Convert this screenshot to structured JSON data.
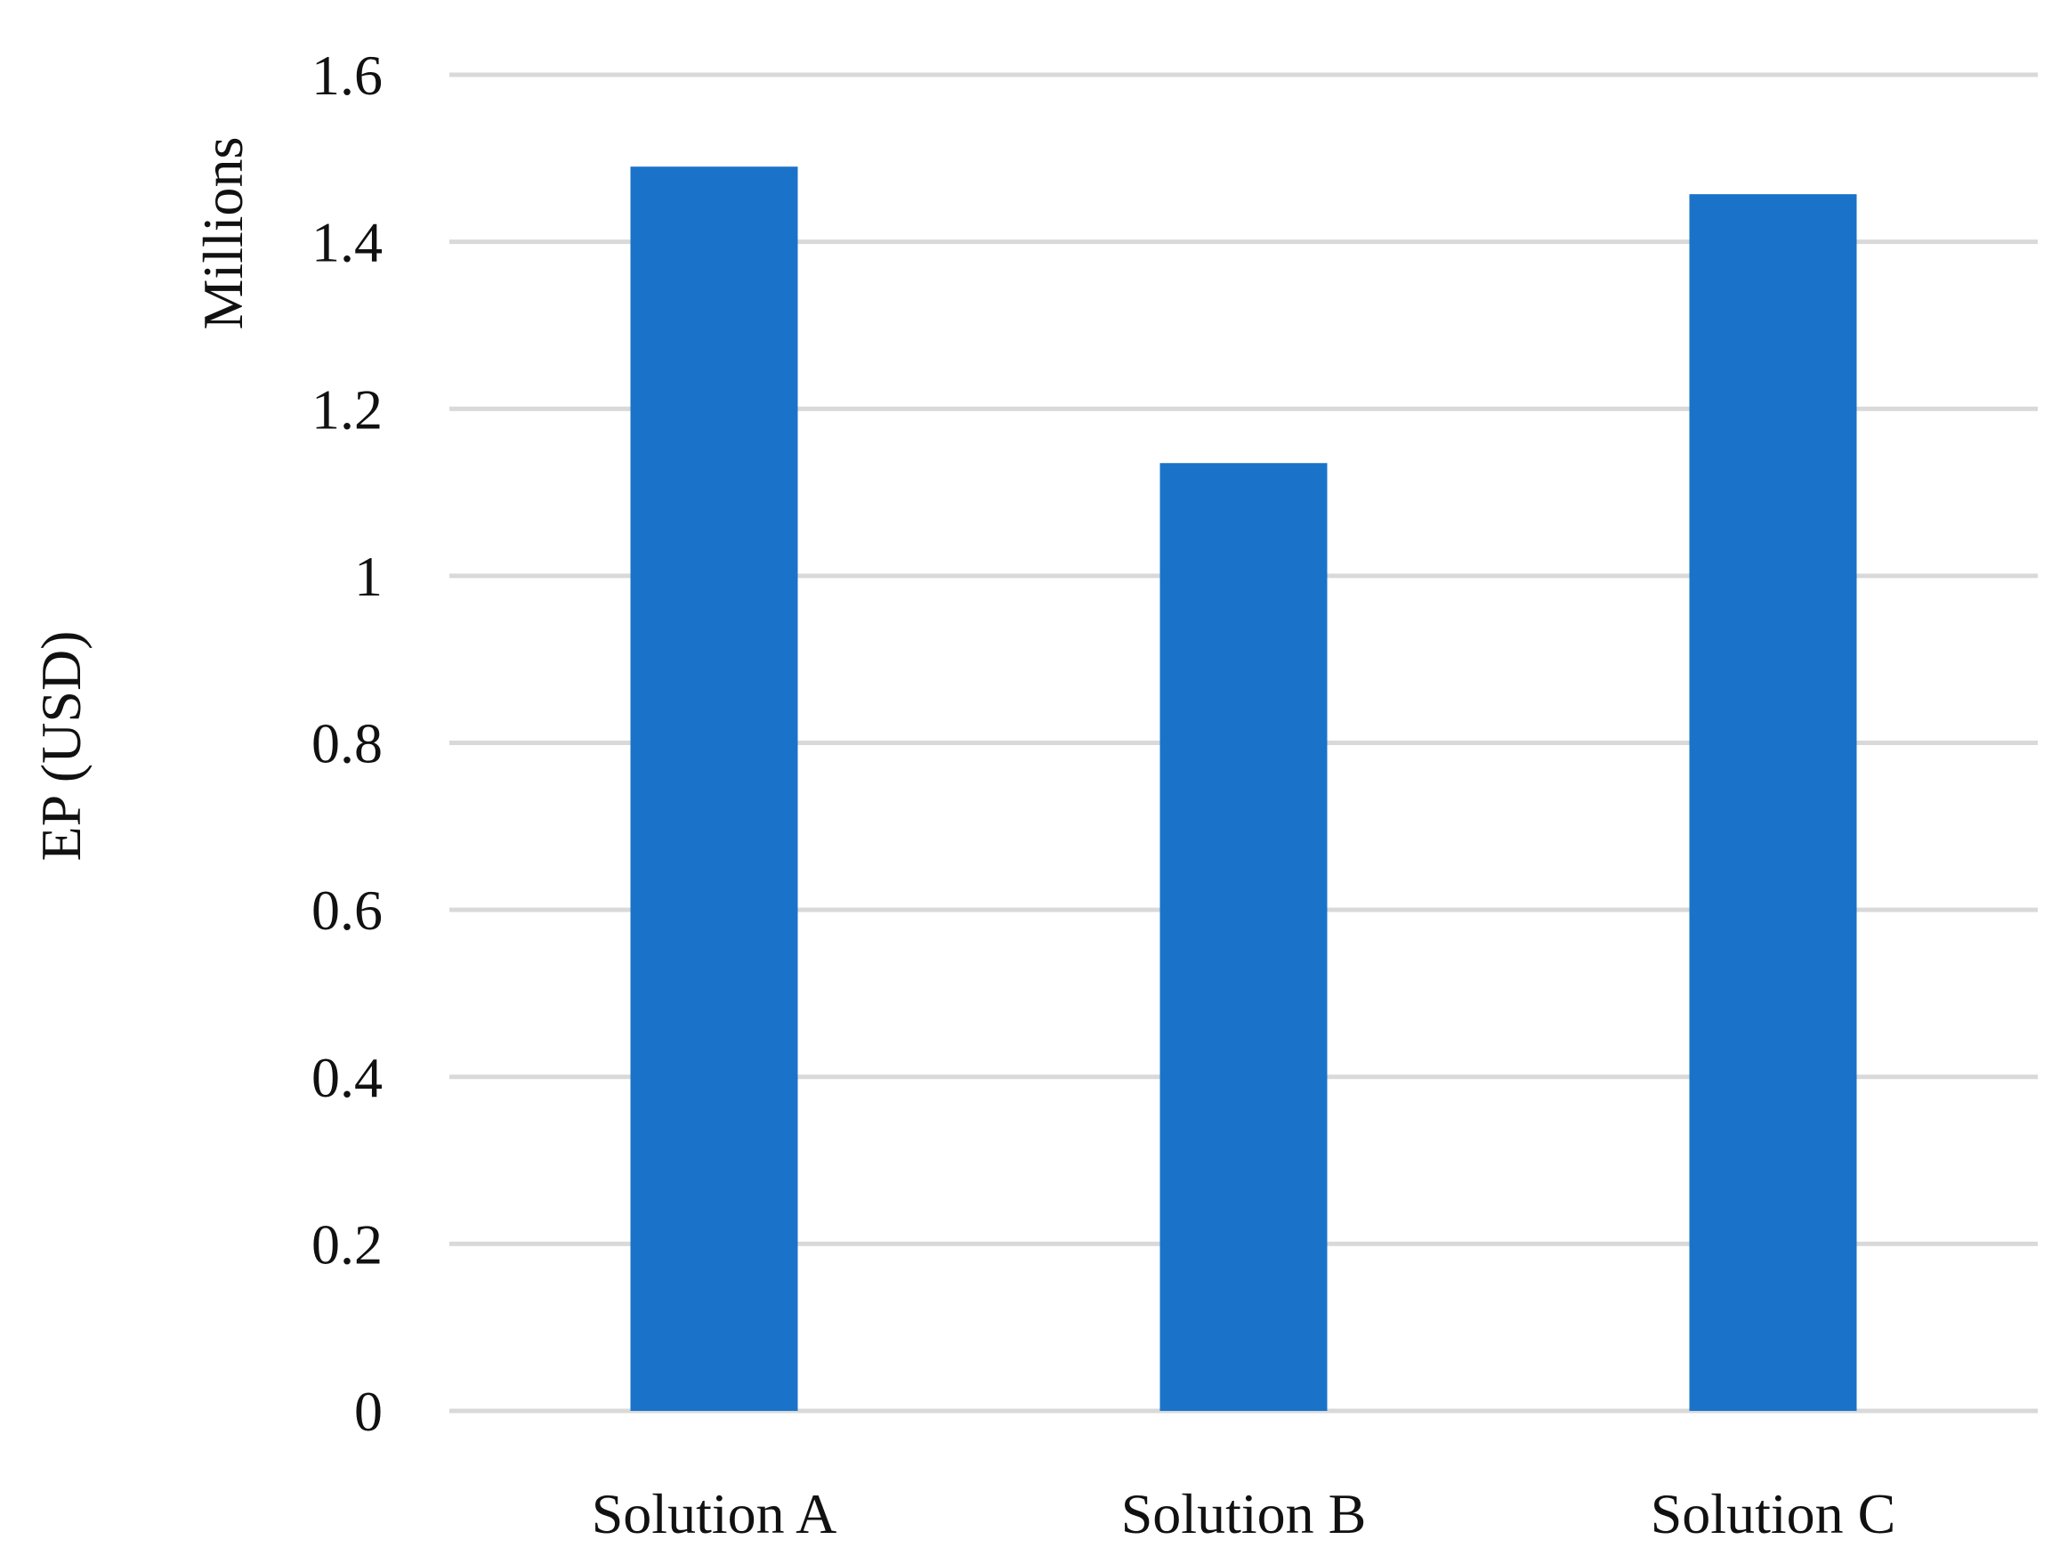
{
  "chart_data": {
    "type": "bar",
    "categories": [
      "Solution A",
      "Solution B",
      "Solution C"
    ],
    "values": [
      1.49,
      1.135,
      1.457
    ],
    "ylabel": "EP (USD)",
    "ylabel_unit": "Millions",
    "ylim": [
      0,
      1.6
    ],
    "yticks": [
      0,
      0.2,
      0.4,
      0.6,
      0.8,
      1,
      1.2,
      1.4,
      1.6
    ],
    "ytick_labels": [
      "0",
      "0.2",
      "0.4",
      "0.6",
      "0.8",
      "1",
      "1.2",
      "1.4",
      "1.6"
    ],
    "grid": true,
    "legend": "none",
    "bar_color": "#1a73c8",
    "grid_color": "#d9d9d9"
  }
}
